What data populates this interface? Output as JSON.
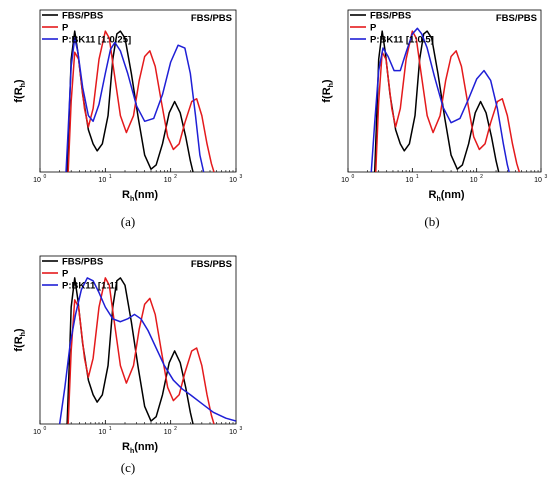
{
  "colors": {
    "fbs_pbs": "#000000",
    "p": "#e41a1c",
    "p_bk11": "#1f1fd6"
  },
  "chart_data": [
    {
      "type": "line",
      "x_scale": "log",
      "xlim": [
        1,
        1000
      ],
      "x_ticks": [
        1,
        10,
        100,
        1000
      ],
      "x_tick_labels": [
        "10",
        "10",
        "10",
        "10"
      ],
      "x_tick_exponents": [
        "0",
        "1",
        "2",
        "3"
      ],
      "xlabel": "R",
      "xlabel_sub": "h",
      "xlabel_unit": "(nm)",
      "ylabel": "f(R",
      "ylabel_sub": "h",
      "ylabel_close": ")",
      "ylim": [
        0,
        1.15
      ],
      "annotation": "FBS/PBS",
      "caption": "(a)",
      "legend": "top-left",
      "series": [
        {
          "name": "FBS/PBS",
          "color": "#000000",
          "points": [
            [
              2.6,
              0
            ],
            [
              2.8,
              0.4
            ],
            [
              3.0,
              0.8
            ],
            [
              3.4,
              1.0
            ],
            [
              3.8,
              0.85
            ],
            [
              4.5,
              0.55
            ],
            [
              5.5,
              0.3
            ],
            [
              6.5,
              0.2
            ],
            [
              7.5,
              0.15
            ],
            [
              9.0,
              0.2
            ],
            [
              11,
              0.4
            ],
            [
              13,
              0.8
            ],
            [
              15,
              0.98
            ],
            [
              17,
              1.0
            ],
            [
              20,
              0.95
            ],
            [
              25,
              0.7
            ],
            [
              32,
              0.38
            ],
            [
              40,
              0.12
            ],
            [
              50,
              0.02
            ],
            [
              60,
              0.05
            ],
            [
              75,
              0.2
            ],
            [
              95,
              0.42
            ],
            [
              115,
              0.5
            ],
            [
              140,
              0.42
            ],
            [
              170,
              0.25
            ],
            [
              200,
              0.08
            ],
            [
              220,
              0
            ]
          ]
        },
        {
          "name": "P",
          "color": "#e41a1c",
          "points": [
            [
              2.7,
              0
            ],
            [
              3.0,
              0.5
            ],
            [
              3.4,
              0.85
            ],
            [
              3.9,
              0.8
            ],
            [
              4.8,
              0.45
            ],
            [
              5.5,
              0.32
            ],
            [
              6.5,
              0.45
            ],
            [
              8.0,
              0.8
            ],
            [
              10,
              1.0
            ],
            [
              11.5,
              0.95
            ],
            [
              13.5,
              0.72
            ],
            [
              17,
              0.4
            ],
            [
              21,
              0.28
            ],
            [
              27,
              0.4
            ],
            [
              33,
              0.65
            ],
            [
              40,
              0.82
            ],
            [
              48,
              0.86
            ],
            [
              58,
              0.75
            ],
            [
              72,
              0.5
            ],
            [
              90,
              0.25
            ],
            [
              110,
              0.16
            ],
            [
              135,
              0.2
            ],
            [
              165,
              0.35
            ],
            [
              210,
              0.5
            ],
            [
              250,
              0.52
            ],
            [
              300,
              0.4
            ],
            [
              360,
              0.2
            ],
            [
              420,
              0.06
            ],
            [
              460,
              0
            ]
          ]
        },
        {
          "name": "P:BK11 [1:0.25]",
          "color": "#1f1fd6",
          "points": [
            [
              2.5,
              0
            ],
            [
              2.7,
              0.3
            ],
            [
              3.0,
              0.75
            ],
            [
              3.4,
              0.95
            ],
            [
              3.8,
              0.85
            ],
            [
              4.5,
              0.6
            ],
            [
              5.5,
              0.4
            ],
            [
              6.5,
              0.36
            ],
            [
              8.0,
              0.48
            ],
            [
              10,
              0.7
            ],
            [
              12,
              0.87
            ],
            [
              14,
              0.92
            ],
            [
              17,
              0.86
            ],
            [
              22,
              0.7
            ],
            [
              30,
              0.47
            ],
            [
              40,
              0.36
            ],
            [
              55,
              0.38
            ],
            [
              75,
              0.55
            ],
            [
              100,
              0.78
            ],
            [
              130,
              0.9
            ],
            [
              165,
              0.88
            ],
            [
              200,
              0.7
            ],
            [
              240,
              0.4
            ],
            [
              280,
              0.12
            ],
            [
              320,
              0
            ]
          ]
        }
      ]
    },
    {
      "type": "line",
      "x_scale": "log",
      "xlim": [
        1,
        1000
      ],
      "x_ticks": [
        1,
        10,
        100,
        1000
      ],
      "x_tick_labels": [
        "10",
        "10",
        "10",
        "10"
      ],
      "x_tick_exponents": [
        "0",
        "1",
        "2",
        "3"
      ],
      "xlabel": "R",
      "xlabel_sub": "h",
      "xlabel_unit": "(nm)",
      "ylabel": "f(R",
      "ylabel_sub": "h",
      "ylabel_close": ")",
      "ylim": [
        0,
        1.15
      ],
      "annotation": "FBS/PBS",
      "caption": "(b)",
      "legend": "top-left",
      "series": [
        {
          "name": "FBS/PBS",
          "color": "#000000",
          "points": [
            [
              2.6,
              0
            ],
            [
              2.8,
              0.4
            ],
            [
              3.0,
              0.8
            ],
            [
              3.4,
              1.0
            ],
            [
              3.8,
              0.85
            ],
            [
              4.5,
              0.55
            ],
            [
              5.5,
              0.3
            ],
            [
              6.5,
              0.2
            ],
            [
              7.5,
              0.15
            ],
            [
              9.0,
              0.2
            ],
            [
              11,
              0.4
            ],
            [
              13,
              0.8
            ],
            [
              15,
              0.98
            ],
            [
              17,
              1.0
            ],
            [
              20,
              0.95
            ],
            [
              25,
              0.7
            ],
            [
              32,
              0.38
            ],
            [
              40,
              0.12
            ],
            [
              50,
              0.02
            ],
            [
              60,
              0.05
            ],
            [
              75,
              0.2
            ],
            [
              95,
              0.42
            ],
            [
              115,
              0.5
            ],
            [
              140,
              0.42
            ],
            [
              170,
              0.25
            ],
            [
              200,
              0.08
            ],
            [
              220,
              0
            ]
          ]
        },
        {
          "name": "P",
          "color": "#e41a1c",
          "points": [
            [
              2.7,
              0
            ],
            [
              3.0,
              0.5
            ],
            [
              3.4,
              0.85
            ],
            [
              3.9,
              0.8
            ],
            [
              4.8,
              0.45
            ],
            [
              5.5,
              0.32
            ],
            [
              6.5,
              0.45
            ],
            [
              8.0,
              0.8
            ],
            [
              10,
              1.0
            ],
            [
              11.5,
              0.95
            ],
            [
              13.5,
              0.72
            ],
            [
              17,
              0.4
            ],
            [
              21,
              0.28
            ],
            [
              27,
              0.4
            ],
            [
              33,
              0.65
            ],
            [
              40,
              0.82
            ],
            [
              48,
              0.86
            ],
            [
              58,
              0.75
            ],
            [
              72,
              0.5
            ],
            [
              90,
              0.25
            ],
            [
              110,
              0.16
            ],
            [
              135,
              0.2
            ],
            [
              165,
              0.35
            ],
            [
              210,
              0.5
            ],
            [
              250,
              0.52
            ],
            [
              300,
              0.4
            ],
            [
              360,
              0.2
            ],
            [
              420,
              0.06
            ],
            [
              460,
              0
            ]
          ]
        },
        {
          "name": "P:BK11 [1:0.5]",
          "color": "#1f1fd6",
          "points": [
            [
              2.3,
              0
            ],
            [
              2.6,
              0.35
            ],
            [
              3.0,
              0.72
            ],
            [
              3.5,
              0.88
            ],
            [
              4.2,
              0.82
            ],
            [
              5.2,
              0.72
            ],
            [
              6.5,
              0.72
            ],
            [
              8.0,
              0.85
            ],
            [
              10,
              0.98
            ],
            [
              12,
              1.02
            ],
            [
              14,
              0.98
            ],
            [
              17,
              0.88
            ],
            [
              22,
              0.68
            ],
            [
              30,
              0.46
            ],
            [
              40,
              0.35
            ],
            [
              55,
              0.38
            ],
            [
              75,
              0.52
            ],
            [
              100,
              0.66
            ],
            [
              130,
              0.72
            ],
            [
              165,
              0.65
            ],
            [
              210,
              0.45
            ],
            [
              260,
              0.2
            ],
            [
              300,
              0.05
            ],
            [
              320,
              0
            ]
          ]
        }
      ]
    },
    {
      "type": "line",
      "x_scale": "log",
      "xlim": [
        1,
        1000
      ],
      "x_ticks": [
        1,
        10,
        100,
        1000
      ],
      "x_tick_labels": [
        "10",
        "10",
        "10",
        "10"
      ],
      "x_tick_exponents": [
        "0",
        "1",
        "2",
        "3"
      ],
      "xlabel": "R",
      "xlabel_sub": "h",
      "xlabel_unit": "(nm)",
      "ylabel": "f(R",
      "ylabel_sub": "h",
      "ylabel_close": ")",
      "ylim": [
        0,
        1.15
      ],
      "annotation": "FBS/PBS",
      "caption": "(c)",
      "legend": "top-left",
      "series": [
        {
          "name": "FBS/PBS",
          "color": "#000000",
          "points": [
            [
              2.6,
              0
            ],
            [
              2.8,
              0.4
            ],
            [
              3.0,
              0.8
            ],
            [
              3.4,
              1.0
            ],
            [
              3.8,
              0.85
            ],
            [
              4.5,
              0.55
            ],
            [
              5.5,
              0.3
            ],
            [
              6.5,
              0.2
            ],
            [
              7.5,
              0.15
            ],
            [
              9.0,
              0.2
            ],
            [
              11,
              0.4
            ],
            [
              13,
              0.8
            ],
            [
              15,
              0.98
            ],
            [
              17,
              1.0
            ],
            [
              20,
              0.95
            ],
            [
              25,
              0.7
            ],
            [
              32,
              0.38
            ],
            [
              40,
              0.12
            ],
            [
              50,
              0.02
            ],
            [
              60,
              0.05
            ],
            [
              75,
              0.2
            ],
            [
              95,
              0.42
            ],
            [
              115,
              0.5
            ],
            [
              140,
              0.42
            ],
            [
              170,
              0.25
            ],
            [
              200,
              0.08
            ],
            [
              220,
              0
            ]
          ]
        },
        {
          "name": "P",
          "color": "#e41a1c",
          "points": [
            [
              2.7,
              0
            ],
            [
              3.0,
              0.5
            ],
            [
              3.4,
              0.85
            ],
            [
              3.9,
              0.8
            ],
            [
              4.8,
              0.45
            ],
            [
              5.5,
              0.32
            ],
            [
              6.5,
              0.45
            ],
            [
              8.0,
              0.8
            ],
            [
              10,
              1.0
            ],
            [
              11.5,
              0.95
            ],
            [
              13.5,
              0.72
            ],
            [
              17,
              0.4
            ],
            [
              21,
              0.28
            ],
            [
              27,
              0.4
            ],
            [
              33,
              0.65
            ],
            [
              40,
              0.82
            ],
            [
              48,
              0.86
            ],
            [
              58,
              0.75
            ],
            [
              72,
              0.5
            ],
            [
              90,
              0.25
            ],
            [
              110,
              0.16
            ],
            [
              135,
              0.2
            ],
            [
              165,
              0.35
            ],
            [
              210,
              0.5
            ],
            [
              250,
              0.52
            ],
            [
              300,
              0.4
            ],
            [
              360,
              0.2
            ],
            [
              420,
              0.06
            ],
            [
              460,
              0
            ]
          ]
        },
        {
          "name": "P:BK11 [1:1]",
          "color": "#1f1fd6",
          "points": [
            [
              2.0,
              0
            ],
            [
              2.4,
              0.25
            ],
            [
              2.9,
              0.55
            ],
            [
              3.5,
              0.75
            ],
            [
              4.3,
              0.92
            ],
            [
              5.3,
              1.0
            ],
            [
              6.5,
              0.98
            ],
            [
              8.0,
              0.9
            ],
            [
              10,
              0.8
            ],
            [
              13,
              0.72
            ],
            [
              17,
              0.7
            ],
            [
              22,
              0.72
            ],
            [
              28,
              0.75
            ],
            [
              35,
              0.72
            ],
            [
              45,
              0.64
            ],
            [
              60,
              0.52
            ],
            [
              80,
              0.4
            ],
            [
              110,
              0.3
            ],
            [
              150,
              0.24
            ],
            [
              200,
              0.2
            ],
            [
              300,
              0.14
            ],
            [
              450,
              0.08
            ],
            [
              700,
              0.04
            ],
            [
              1000,
              0.02
            ]
          ]
        }
      ]
    }
  ]
}
